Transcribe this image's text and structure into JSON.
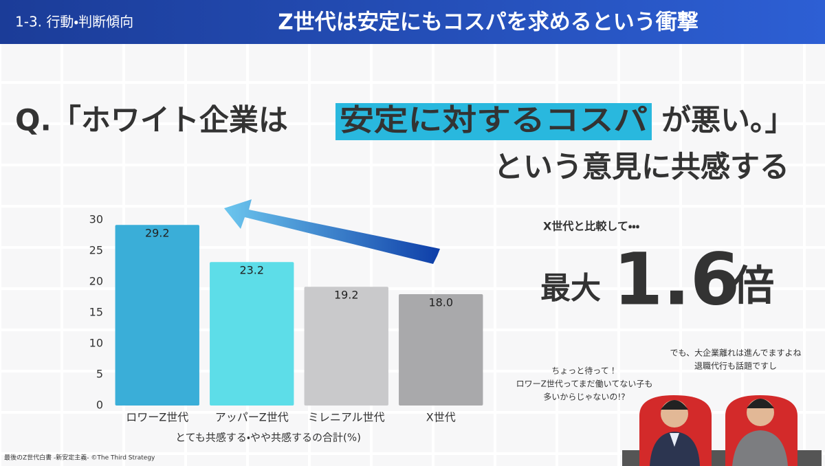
{
  "header": {
    "section": "1-3. 行動・判断傾向",
    "title": "Z世代は安定にもコスパを求めるという衝撃"
  },
  "question": {
    "prefix": "Q.「ホワイト企業は",
    "highlight": "安定に対するコスパ",
    "suffix": "が悪い。」",
    "line2": "という意見に共感する"
  },
  "callout": {
    "lead": "X世代と比較して・・・",
    "prefix": "最大",
    "number": "1.6",
    "suffix": "倍"
  },
  "bubbles": [
    {
      "lines": [
        "ちょっと待って！",
        "ロワーZ世代ってまだ働いてない子も",
        "多いからじゃないの!?"
      ]
    },
    {
      "lines": [
        "でも、大企業離れは進んでますよね",
        "退職代行も話題ですし"
      ]
    }
  ],
  "footer": "最後のZ世代白書 -新安定主義- ©The Third Strategy",
  "chart_data": {
    "type": "bar",
    "x_label": "とても共感する・やや共感するの合計(%)",
    "categories": [
      "ロワーZ世代",
      "アッパーZ世代",
      "ミレニアル世代",
      "X世代"
    ],
    "values": [
      29.2,
      23.2,
      19.2,
      18.0
    ],
    "value_labels": [
      "29.2",
      "23.2",
      "19.2",
      "18.0"
    ],
    "colors": [
      "#3aaed8",
      "#5ddde8",
      "#c9c9cb",
      "#a9a9ab"
    ],
    "ylim": [
      0,
      30
    ],
    "yticks": [
      0,
      5,
      10,
      15,
      20,
      25,
      30
    ],
    "grid": false
  }
}
